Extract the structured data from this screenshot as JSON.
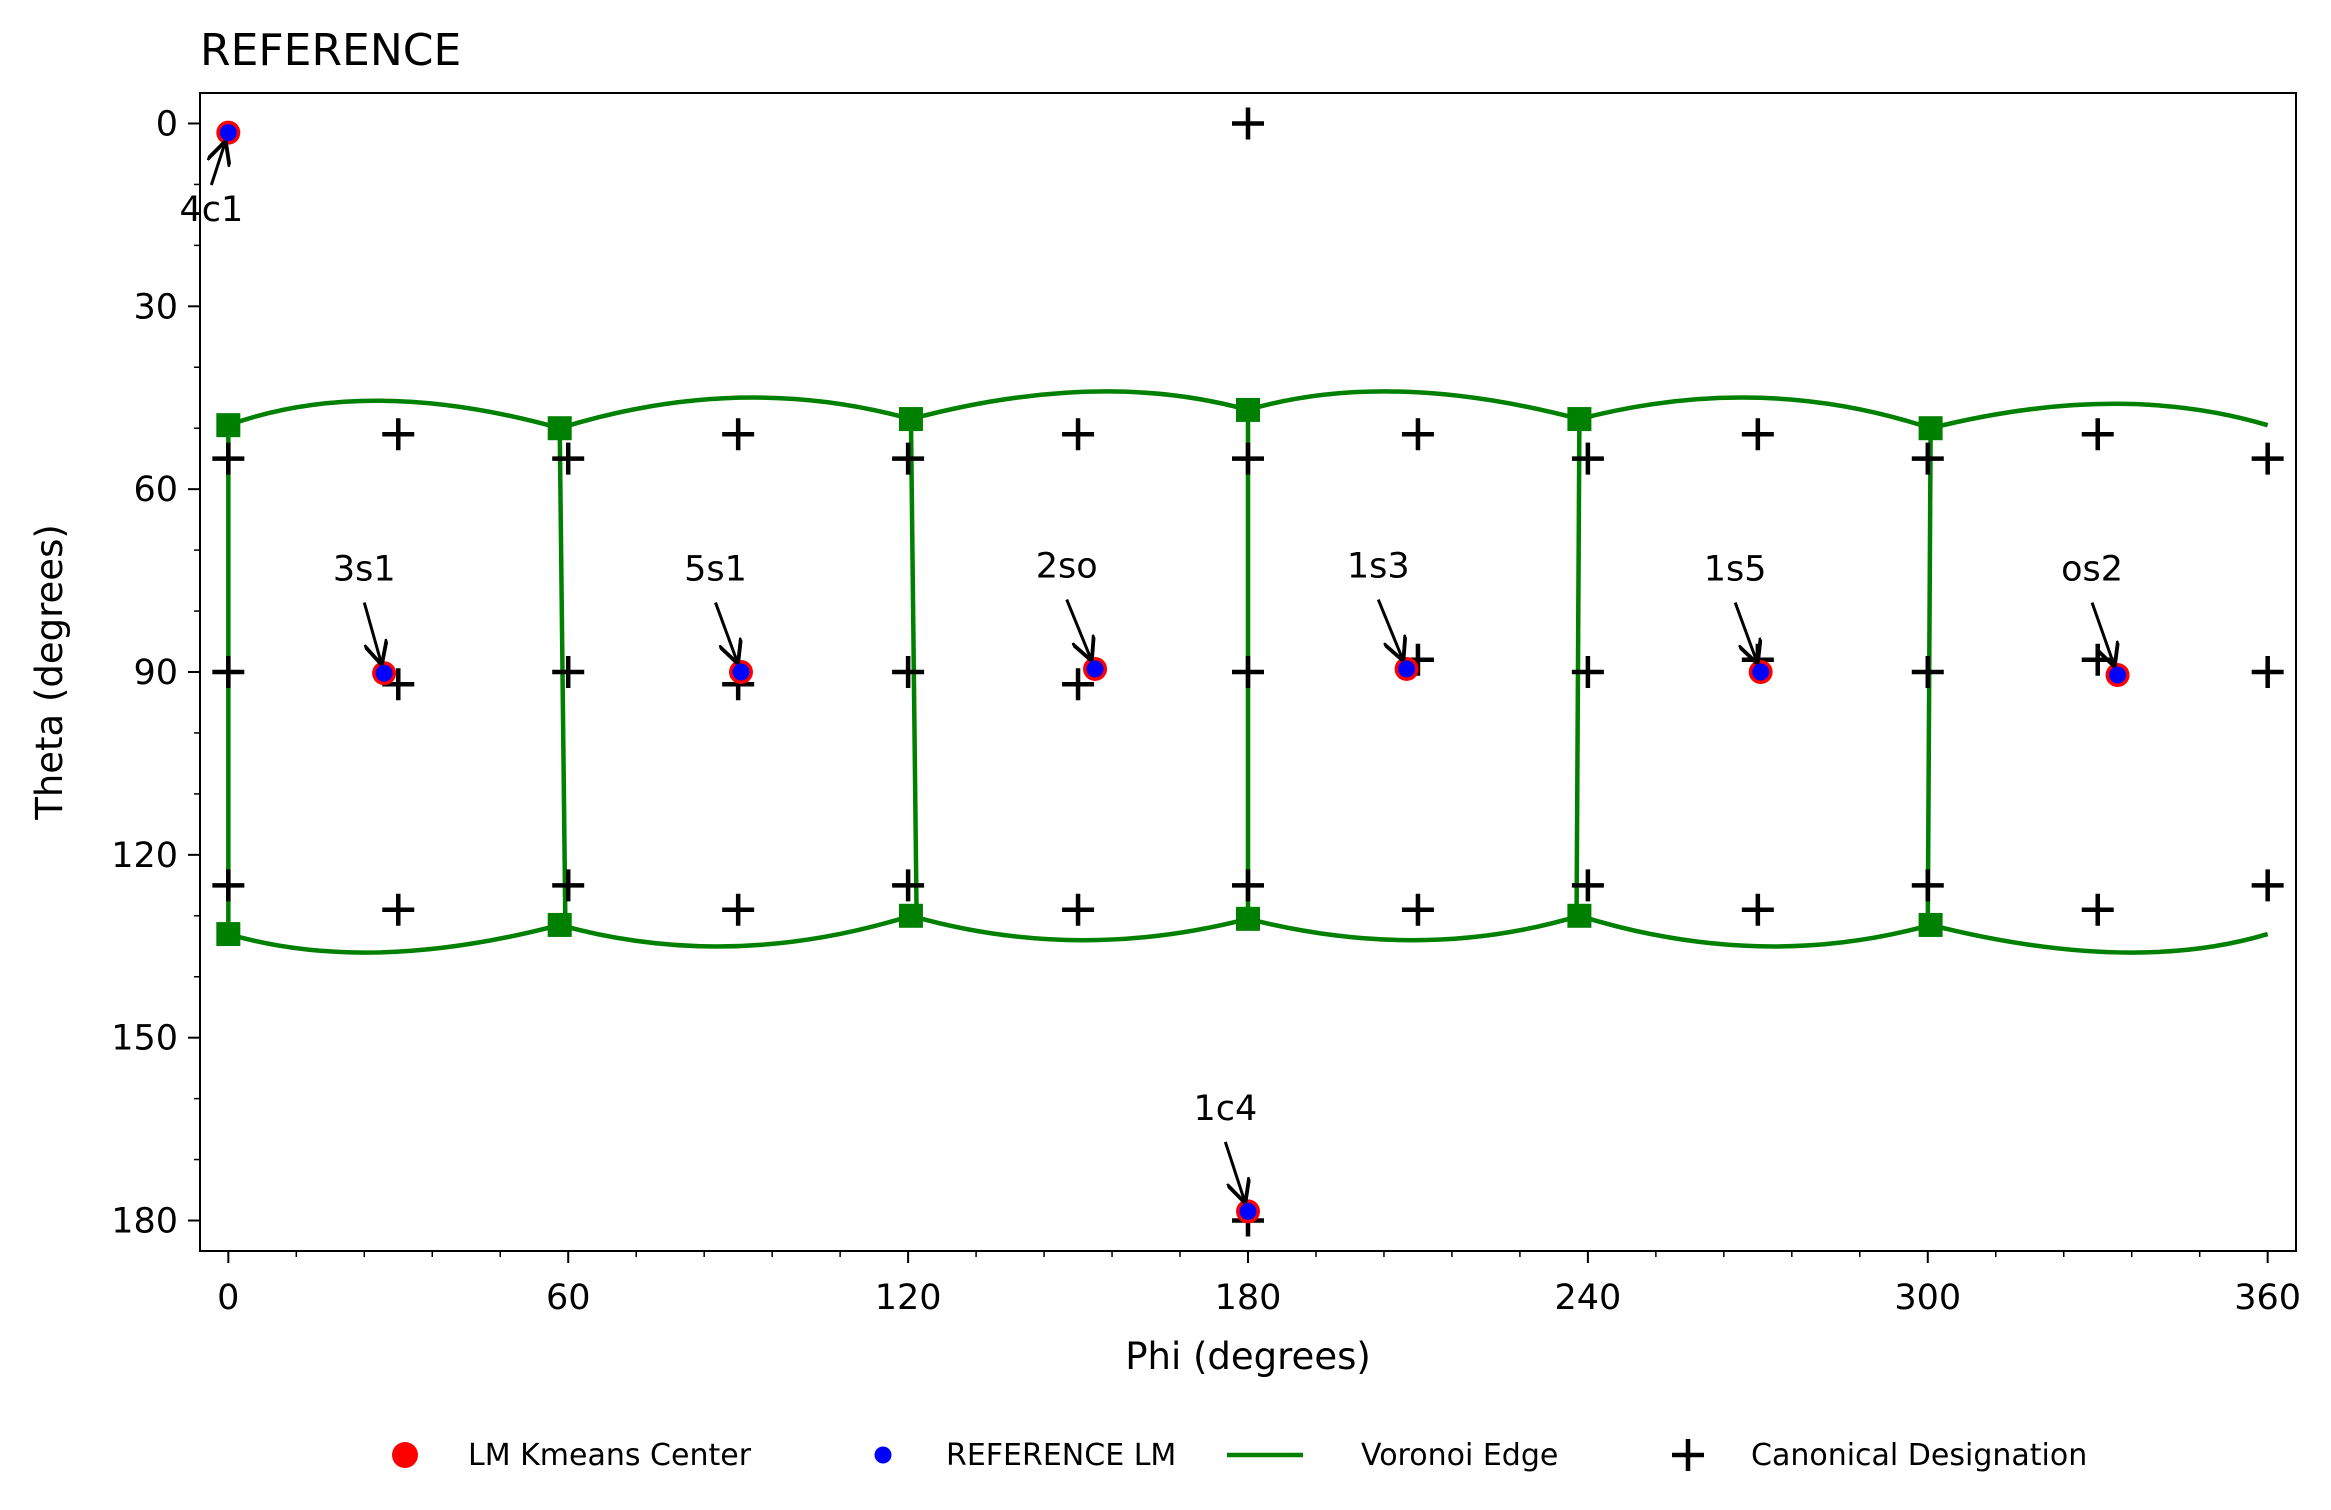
{
  "chart_data": {
    "type": "scatter",
    "title": "REFERENCE",
    "xlabel": "Phi (degrees)",
    "ylabel": "Theta (degrees)",
    "xlim": [
      -5,
      365
    ],
    "ylim": [
      -5,
      185
    ],
    "y_inverted": true,
    "xticks": [
      0,
      60,
      120,
      180,
      240,
      300,
      360
    ],
    "yticks": [
      0,
      30,
      60,
      90,
      120,
      150,
      180
    ],
    "x_minor_step": 12,
    "y_minor_step": 10,
    "grid": false,
    "legend_position": "bottom",
    "colors": {
      "kmeans": "#ff0000",
      "reference": "#0000ff",
      "voronoi": "#008000",
      "canonical": "#000000"
    },
    "legend": [
      {
        "key": "kmeans",
        "label": "LM Kmeans Center",
        "marker": "red-circle"
      },
      {
        "key": "reference",
        "label": "REFERENCE LM",
        "marker": "blue-dot"
      },
      {
        "key": "voronoi",
        "label": "Voronoi Edge",
        "marker": "green-line"
      },
      {
        "key": "canonical",
        "label": "Canonical Designation",
        "marker": "black-plus"
      }
    ],
    "series": [
      {
        "name": "LM Kmeans Center",
        "points": [
          {
            "label": "4c1",
            "x": 0.0,
            "y": 1.5
          },
          {
            "label": "3s1",
            "x": 27.5,
            "y": 90.2
          },
          {
            "label": "5s1",
            "x": 90.5,
            "y": 90.0
          },
          {
            "label": "2so",
            "x": 153.0,
            "y": 89.5
          },
          {
            "label": "1s3",
            "x": 208.0,
            "y": 89.5
          },
          {
            "label": "1s5",
            "x": 270.5,
            "y": 90.0
          },
          {
            "label": "os2",
            "x": 333.5,
            "y": 90.5
          },
          {
            "label": "1c4",
            "x": 180.0,
            "y": 178.5
          }
        ]
      },
      {
        "name": "REFERENCE LM",
        "points": [
          {
            "label": "4c1",
            "x": 0.0,
            "y": 1.5
          },
          {
            "label": "3s1",
            "x": 27.5,
            "y": 90.2
          },
          {
            "label": "5s1",
            "x": 90.5,
            "y": 90.0
          },
          {
            "label": "2so",
            "x": 153.0,
            "y": 89.5
          },
          {
            "label": "1s3",
            "x": 208.0,
            "y": 89.5
          },
          {
            "label": "1s5",
            "x": 270.5,
            "y": 90.0
          },
          {
            "label": "os2",
            "x": 333.5,
            "y": 90.5
          },
          {
            "label": "1c4",
            "x": 180.0,
            "y": 178.5
          }
        ]
      },
      {
        "name": "Canonical Designation",
        "points": [
          {
            "x": 180,
            "y": 0
          },
          {
            "x": 30,
            "y": 51
          },
          {
            "x": 90,
            "y": 51
          },
          {
            "x": 150,
            "y": 51
          },
          {
            "x": 210,
            "y": 51
          },
          {
            "x": 270,
            "y": 51
          },
          {
            "x": 330,
            "y": 51
          },
          {
            "x": 0,
            "y": 55
          },
          {
            "x": 60,
            "y": 55
          },
          {
            "x": 120,
            "y": 55
          },
          {
            "x": 180,
            "y": 55
          },
          {
            "x": 240,
            "y": 55
          },
          {
            "x": 300,
            "y": 55
          },
          {
            "x": 360,
            "y": 55
          },
          {
            "x": 30,
            "y": 92
          },
          {
            "x": 90,
            "y": 92
          },
          {
            "x": 150,
            "y": 92
          },
          {
            "x": 210,
            "y": 88
          },
          {
            "x": 270,
            "y": 88
          },
          {
            "x": 330,
            "y": 88
          },
          {
            "x": 0,
            "y": 90
          },
          {
            "x": 60,
            "y": 90
          },
          {
            "x": 120,
            "y": 90
          },
          {
            "x": 180,
            "y": 90
          },
          {
            "x": 240,
            "y": 90
          },
          {
            "x": 300,
            "y": 90
          },
          {
            "x": 360,
            "y": 90
          },
          {
            "x": 0,
            "y": 125
          },
          {
            "x": 60,
            "y": 125
          },
          {
            "x": 120,
            "y": 125
          },
          {
            "x": 180,
            "y": 125
          },
          {
            "x": 240,
            "y": 125
          },
          {
            "x": 300,
            "y": 125
          },
          {
            "x": 360,
            "y": 125
          },
          {
            "x": 30,
            "y": 129
          },
          {
            "x": 90,
            "y": 129
          },
          {
            "x": 150,
            "y": 129
          },
          {
            "x": 210,
            "y": 129
          },
          {
            "x": 270,
            "y": 129
          },
          {
            "x": 330,
            "y": 129
          },
          {
            "x": 180,
            "y": 180
          }
        ]
      },
      {
        "name": "Voronoi Edge",
        "vertices": [
          {
            "x": 0,
            "y": 49.5
          },
          {
            "x": 58.5,
            "y": 50
          },
          {
            "x": 120.5,
            "y": 48.5
          },
          {
            "x": 180,
            "y": 47
          },
          {
            "x": 238.5,
            "y": 48.5
          },
          {
            "x": 300.5,
            "y": 50
          },
          {
            "x": 0,
            "y": 133
          },
          {
            "x": 58.5,
            "y": 131.5
          },
          {
            "x": 120.5,
            "y": 130
          },
          {
            "x": 180,
            "y": 130.5
          },
          {
            "x": 238.5,
            "y": 130
          },
          {
            "x": 300.5,
            "y": 131.5
          }
        ],
        "top_arcs": [
          {
            "from": [
              0,
              49.5
            ],
            "peak": [
              27,
              45.5
            ],
            "to": [
              58.5,
              50
            ]
          },
          {
            "from": [
              58.5,
              50
            ],
            "peak": [
              90,
              45
            ],
            "to": [
              120.5,
              48.5
            ]
          },
          {
            "from": [
              120.5,
              48.5
            ],
            "peak": [
              152,
              44
            ],
            "to": [
              180,
              47
            ]
          },
          {
            "from": [
              180,
              47
            ],
            "peak": [
              207,
              44
            ],
            "to": [
              238.5,
              48.5
            ]
          },
          {
            "from": [
              238.5,
              48.5
            ],
            "peak": [
              270,
              45
            ],
            "to": [
              300.5,
              50
            ]
          },
          {
            "from": [
              300.5,
              50
            ],
            "peak": [
              332,
              46
            ],
            "to": [
              360,
              49.5
            ]
          }
        ],
        "bottom_arcs": [
          {
            "from": [
              0,
              133
            ],
            "peak": [
              27,
              136
            ],
            "to": [
              58.5,
              131.5
            ]
          },
          {
            "from": [
              58.5,
              131.5
            ],
            "peak": [
              89,
              135
            ],
            "to": [
              120.5,
              130
            ]
          },
          {
            "from": [
              120.5,
              130
            ],
            "peak": [
              150,
              134
            ],
            "to": [
              180,
              130.5
            ]
          },
          {
            "from": [
              180,
              130.5
            ],
            "peak": [
              210,
              134
            ],
            "to": [
              238.5,
              130
            ]
          },
          {
            "from": [
              238.5,
              130
            ],
            "peak": [
              270,
              135
            ],
            "to": [
              300.5,
              131.5
            ]
          },
          {
            "from": [
              300.5,
              131.5
            ],
            "peak": [
              333,
              136
            ],
            "to": [
              360,
              133
            ]
          }
        ],
        "verticals": [
          {
            "x1": 0,
            "y1": 49.5,
            "x2": 0,
            "y2": 133
          },
          {
            "x1": 58.5,
            "y1": 50,
            "x2": 59.5,
            "y2": 131.5
          },
          {
            "x1": 120.5,
            "y1": 48.5,
            "x2": 121.5,
            "y2": 130
          },
          {
            "x1": 180,
            "y1": 47,
            "x2": 180,
            "y2": 130.5
          },
          {
            "x1": 238.5,
            "y1": 48.5,
            "x2": 238,
            "y2": 130
          },
          {
            "x1": 300.5,
            "y1": 50,
            "x2": 300,
            "y2": 131.5
          }
        ]
      }
    ],
    "annotations": [
      {
        "text": "4c1",
        "point": [
          0,
          1.5
        ],
        "label_at": [
          -3,
          16
        ]
      },
      {
        "text": "3s1",
        "point": [
          27.5,
          90.2
        ],
        "label_at": [
          24,
          75
        ]
      },
      {
        "text": "5s1",
        "point": [
          90.5,
          90.0
        ],
        "label_at": [
          86,
          75
        ]
      },
      {
        "text": "2so",
        "point": [
          153.0,
          89.5
        ],
        "label_at": [
          148,
          74.5
        ]
      },
      {
        "text": "1s3",
        "point": [
          208.0,
          89.5
        ],
        "label_at": [
          203,
          74.5
        ]
      },
      {
        "text": "1s5",
        "point": [
          270.5,
          90.0
        ],
        "label_at": [
          266,
          75
        ]
      },
      {
        "text": "os2",
        "point": [
          333.5,
          90.5
        ],
        "label_at": [
          329,
          75
        ]
      },
      {
        "text": "1c4",
        "point": [
          180.0,
          178.5
        ],
        "label_at": [
          176,
          163.5
        ]
      }
    ]
  }
}
